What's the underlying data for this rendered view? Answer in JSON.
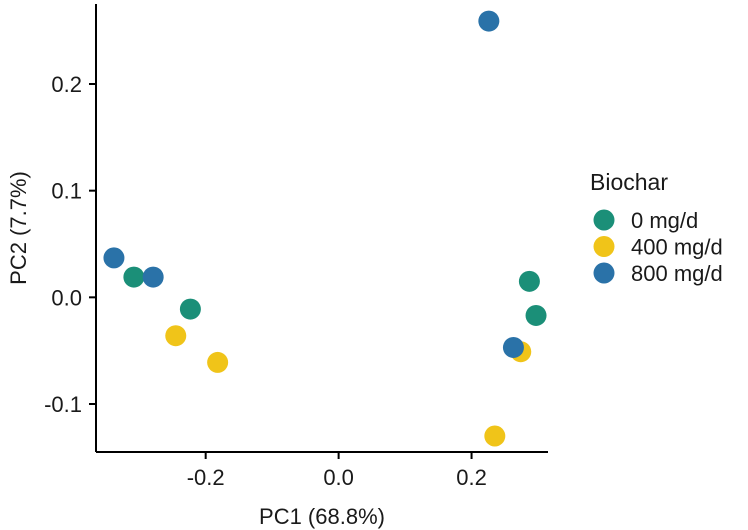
{
  "chart_data": {
    "type": "scatter",
    "xlabel": "PC1 (68.8%)",
    "ylabel": "PC2 (7.7%)",
    "xlim": [
      -0.365,
      0.315
    ],
    "ylim": [
      -0.145,
      0.275
    ],
    "x_ticks": [
      {
        "value": -0.2,
        "label": "-0.2"
      },
      {
        "value": 0.0,
        "label": "0.0"
      },
      {
        "value": 0.2,
        "label": "0.2"
      }
    ],
    "y_ticks": [
      {
        "value": -0.1,
        "label": "-0.1"
      },
      {
        "value": 0.0,
        "label": "0.0"
      },
      {
        "value": 0.1,
        "label": "0.1"
      },
      {
        "value": 0.2,
        "label": "0.2"
      }
    ],
    "grid": false,
    "legend": {
      "title": "Biochar",
      "position": "right",
      "entries": [
        {
          "label": "0 mg/d",
          "color": "#1b8f78"
        },
        {
          "label": "400 mg/d",
          "color": "#f0c419"
        },
        {
          "label": "800 mg/d",
          "color": "#2a72a8"
        }
      ]
    },
    "series": [
      {
        "name": "0 mg/d",
        "color": "#1b8f78",
        "points": [
          {
            "x": -0.308,
            "y": 0.019
          },
          {
            "x": -0.223,
            "y": -0.011
          },
          {
            "x": 0.287,
            "y": 0.015
          },
          {
            "x": 0.297,
            "y": -0.017
          }
        ]
      },
      {
        "name": "400 mg/d",
        "color": "#f0c419",
        "points": [
          {
            "x": -0.245,
            "y": -0.036
          },
          {
            "x": -0.182,
            "y": -0.061
          },
          {
            "x": 0.274,
            "y": -0.051
          },
          {
            "x": 0.235,
            "y": -0.13
          }
        ]
      },
      {
        "name": "800 mg/d",
        "color": "#2a72a8",
        "points": [
          {
            "x": -0.338,
            "y": 0.037
          },
          {
            "x": -0.279,
            "y": 0.019
          },
          {
            "x": 0.226,
            "y": 0.259
          },
          {
            "x": 0.263,
            "y": -0.047
          }
        ]
      }
    ]
  }
}
